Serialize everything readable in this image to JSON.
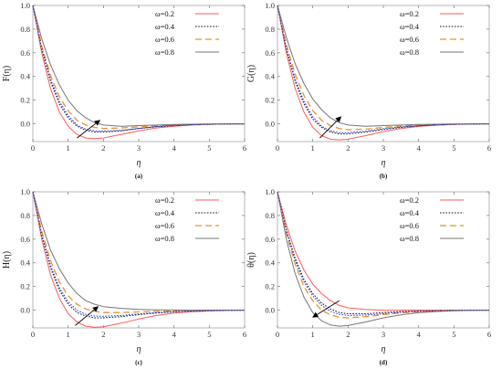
{
  "chart_data": [
    {
      "type": "line",
      "caption": "(a)",
      "ylabel": "F(η)",
      "xlabel": "η",
      "xlim": [
        0,
        6
      ],
      "ylim": [
        -0.15,
        1.0
      ],
      "xticks": [
        "0",
        "1",
        "2",
        "3",
        "4",
        "5",
        "6"
      ],
      "yticks": [
        "0.0",
        "0.2",
        "0.4",
        "0.6",
        "0.8",
        "1.0"
      ],
      "ytick_values": [
        0,
        0.2,
        0.4,
        0.6,
        0.8,
        1.0
      ],
      "legend_position": "top-right",
      "arrow": {
        "from": [
          1.25,
          -0.12
        ],
        "to": [
          1.9,
          0.03
        ]
      },
      "series": [
        {
          "name": "ω=0.2",
          "color": "#ff5a5a",
          "dash": "solid",
          "x": [
            0,
            0.25,
            0.5,
            0.75,
            1,
            1.25,
            1.5,
            1.75,
            2,
            2.5,
            3,
            3.5,
            4,
            4.5,
            5,
            5.5,
            6
          ],
          "y": [
            1.0,
            0.6,
            0.3,
            0.1,
            -0.02,
            -0.09,
            -0.12,
            -0.125,
            -0.12,
            -0.09,
            -0.06,
            -0.035,
            -0.02,
            -0.01,
            -0.005,
            -0.002,
            0.0
          ]
        },
        {
          "name": "ω=0.4",
          "color": "#111111",
          "dash": "dot",
          "x": [
            0,
            0.25,
            0.5,
            0.75,
            1,
            1.25,
            1.5,
            1.75,
            2,
            2.5,
            3,
            3.5,
            4,
            4.5,
            5,
            5.5,
            6
          ],
          "y": [
            1.0,
            0.63,
            0.36,
            0.17,
            0.05,
            -0.02,
            -0.055,
            -0.07,
            -0.07,
            -0.06,
            -0.04,
            -0.025,
            -0.015,
            -0.008,
            -0.004,
            -0.002,
            0.0
          ]
        },
        {
          "name": "ω=0.6",
          "color": "#e8952a",
          "dash": "long",
          "x": [
            0,
            0.25,
            0.5,
            0.75,
            1,
            1.25,
            1.5,
            1.75,
            2,
            2.5,
            3,
            3.5,
            4,
            4.5,
            5,
            5.5,
            6
          ],
          "y": [
            1.0,
            0.66,
            0.41,
            0.23,
            0.11,
            0.03,
            -0.01,
            -0.03,
            -0.04,
            -0.035,
            -0.025,
            -0.015,
            -0.009,
            -0.005,
            -0.003,
            -0.001,
            0.0
          ]
        },
        {
          "name": "ω=0.8",
          "color": "#777777",
          "dash": "solid",
          "x": [
            0,
            0.25,
            0.5,
            0.75,
            1,
            1.25,
            1.5,
            1.75,
            2,
            2.5,
            3,
            3.5,
            4,
            4.5,
            5,
            5.5,
            6
          ],
          "y": [
            1.0,
            0.72,
            0.5,
            0.33,
            0.2,
            0.11,
            0.05,
            0.01,
            -0.01,
            -0.02,
            -0.015,
            -0.01,
            -0.006,
            -0.003,
            -0.002,
            -0.001,
            0.0
          ]
        },
        {
          "name": "",
          "color": "#2233dd",
          "dash": "dot",
          "legend": false,
          "x": [
            0,
            0.25,
            0.5,
            0.75,
            1,
            1.25,
            1.5,
            1.75,
            2,
            2.5,
            3,
            3.5,
            4,
            4.5,
            5,
            5.5,
            6
          ],
          "y": [
            1.0,
            0.64,
            0.38,
            0.19,
            0.07,
            -0.01,
            -0.045,
            -0.06,
            -0.062,
            -0.055,
            -0.038,
            -0.023,
            -0.013,
            -0.007,
            -0.003,
            -0.001,
            0.0
          ]
        }
      ]
    },
    {
      "type": "line",
      "caption": "(b)",
      "ylabel": "G(η)",
      "xlabel": "η",
      "xlim": [
        0,
        6
      ],
      "ylim": [
        -0.15,
        1.0
      ],
      "xticks": [
        "0",
        "1",
        "2",
        "3",
        "4",
        "5",
        "6"
      ],
      "yticks": [
        "0.0",
        "0.2",
        "0.4",
        "0.6",
        "0.8",
        "1.0"
      ],
      "ytick_values": [
        0,
        0.2,
        0.4,
        0.6,
        0.8,
        1.0
      ],
      "legend_position": "top-right",
      "arrow": {
        "from": [
          1.2,
          -0.12
        ],
        "to": [
          1.8,
          0.06
        ]
      },
      "series": [
        {
          "name": "ω=0.2",
          "color": "#ff5a5a",
          "dash": "solid",
          "x": [
            0,
            0.25,
            0.5,
            0.75,
            1,
            1.25,
            1.5,
            1.75,
            2,
            2.5,
            3,
            3.5,
            4,
            4.5,
            5,
            5.5,
            6
          ],
          "y": [
            1.0,
            0.6,
            0.3,
            0.1,
            -0.03,
            -0.1,
            -0.13,
            -0.135,
            -0.13,
            -0.1,
            -0.065,
            -0.04,
            -0.022,
            -0.012,
            -0.006,
            -0.002,
            0.0
          ]
        },
        {
          "name": "ω=0.4",
          "color": "#111111",
          "dash": "dot",
          "x": [
            0,
            0.25,
            0.5,
            0.75,
            1,
            1.25,
            1.5,
            1.75,
            2,
            2.5,
            3,
            3.5,
            4,
            4.5,
            5,
            5.5,
            6
          ],
          "y": [
            1.0,
            0.63,
            0.36,
            0.17,
            0.04,
            -0.03,
            -0.07,
            -0.085,
            -0.085,
            -0.07,
            -0.048,
            -0.03,
            -0.017,
            -0.009,
            -0.004,
            -0.002,
            0.0
          ]
        },
        {
          "name": "ω=0.6",
          "color": "#e8952a",
          "dash": "long",
          "x": [
            0,
            0.25,
            0.5,
            0.75,
            1,
            1.25,
            1.5,
            1.75,
            2,
            2.5,
            3,
            3.5,
            4,
            4.5,
            5,
            5.5,
            6
          ],
          "y": [
            1.0,
            0.67,
            0.42,
            0.24,
            0.11,
            0.03,
            -0.015,
            -0.04,
            -0.05,
            -0.045,
            -0.03,
            -0.018,
            -0.01,
            -0.006,
            -0.003,
            -0.001,
            0.0
          ]
        },
        {
          "name": "ω=0.8",
          "color": "#777777",
          "dash": "solid",
          "x": [
            0,
            0.25,
            0.5,
            0.75,
            1,
            1.25,
            1.5,
            1.75,
            2,
            2.5,
            3,
            3.5,
            4,
            4.5,
            5,
            5.5,
            6
          ],
          "y": [
            1.0,
            0.73,
            0.51,
            0.34,
            0.21,
            0.12,
            0.05,
            0.01,
            -0.01,
            -0.02,
            -0.015,
            -0.01,
            -0.006,
            -0.003,
            -0.002,
            -0.001,
            0.0
          ]
        },
        {
          "name": "",
          "color": "#2233dd",
          "dash": "dot",
          "legend": false,
          "x": [
            0,
            0.25,
            0.5,
            0.75,
            1,
            1.25,
            1.5,
            1.75,
            2,
            2.5,
            3,
            3.5,
            4,
            4.5,
            5,
            5.5,
            6
          ],
          "y": [
            1.0,
            0.64,
            0.38,
            0.19,
            0.06,
            -0.02,
            -0.06,
            -0.075,
            -0.075,
            -0.062,
            -0.042,
            -0.026,
            -0.015,
            -0.008,
            -0.004,
            -0.002,
            0.0
          ]
        }
      ]
    },
    {
      "type": "line",
      "caption": "(c)",
      "ylabel": "H(η)",
      "xlabel": "η",
      "xlim": [
        0,
        6
      ],
      "ylim": [
        -0.15,
        1.0
      ],
      "xticks": [
        "0",
        "1",
        "2",
        "3",
        "4",
        "5",
        "6"
      ],
      "yticks": [
        "0.0",
        "0.2",
        "0.4",
        "0.6",
        "0.8",
        "1.0"
      ],
      "ytick_values": [
        0,
        0.2,
        0.4,
        0.6,
        0.8,
        1.0
      ],
      "legend_position": "top-right",
      "arrow": {
        "from": [
          1.2,
          -0.13
        ],
        "to": [
          1.85,
          0.03
        ]
      },
      "series": [
        {
          "name": "ω=0.2",
          "color": "#ff5a5a",
          "dash": "solid",
          "x": [
            0,
            0.25,
            0.5,
            0.75,
            1,
            1.25,
            1.5,
            1.75,
            2,
            2.5,
            3,
            3.5,
            4,
            4.5,
            5,
            5.5,
            6
          ],
          "y": [
            1.0,
            0.6,
            0.3,
            0.1,
            -0.03,
            -0.1,
            -0.135,
            -0.145,
            -0.14,
            -0.11,
            -0.075,
            -0.045,
            -0.025,
            -0.014,
            -0.007,
            -0.003,
            0.0
          ]
        },
        {
          "name": "ω=0.4",
          "color": "#111111",
          "dash": "dot",
          "x": [
            0,
            0.25,
            0.5,
            0.75,
            1,
            1.25,
            1.5,
            1.75,
            2,
            2.5,
            3,
            3.5,
            4,
            4.5,
            5,
            5.5,
            6
          ],
          "y": [
            1.0,
            0.63,
            0.36,
            0.17,
            0.05,
            -0.02,
            -0.05,
            -0.065,
            -0.065,
            -0.055,
            -0.038,
            -0.024,
            -0.014,
            -0.008,
            -0.004,
            -0.002,
            0.0
          ]
        },
        {
          "name": "ω=0.6",
          "color": "#e8952a",
          "dash": "long",
          "x": [
            0,
            0.25,
            0.5,
            0.75,
            1,
            1.25,
            1.5,
            1.75,
            2,
            2.5,
            3,
            3.5,
            4,
            4.5,
            5,
            5.5,
            6
          ],
          "y": [
            1.0,
            0.67,
            0.42,
            0.24,
            0.12,
            0.05,
            0.01,
            -0.01,
            -0.02,
            -0.02,
            -0.015,
            -0.01,
            -0.006,
            -0.003,
            -0.002,
            -0.001,
            0.0
          ]
        },
        {
          "name": "ω=0.8",
          "color": "#777777",
          "dash": "solid",
          "x": [
            0,
            0.25,
            0.5,
            0.75,
            1,
            1.25,
            1.5,
            1.75,
            2,
            2.5,
            3,
            3.5,
            4,
            4.5,
            5,
            5.5,
            6
          ],
          "y": [
            1.0,
            0.73,
            0.51,
            0.35,
            0.23,
            0.14,
            0.08,
            0.05,
            0.03,
            0.015,
            0.007,
            0.003,
            0.001,
            0.0,
            0.0,
            0.0,
            0.0
          ]
        },
        {
          "name": "",
          "color": "#2233dd",
          "dash": "dot",
          "legend": false,
          "x": [
            0,
            0.25,
            0.5,
            0.75,
            1,
            1.25,
            1.5,
            1.75,
            2,
            2.5,
            3,
            3.5,
            4,
            4.5,
            5,
            5.5,
            6
          ],
          "y": [
            1.0,
            0.64,
            0.38,
            0.19,
            0.07,
            0.0,
            -0.035,
            -0.05,
            -0.052,
            -0.045,
            -0.032,
            -0.02,
            -0.012,
            -0.007,
            -0.003,
            -0.001,
            0.0
          ]
        }
      ]
    },
    {
      "type": "line",
      "caption": "(d)",
      "ylabel": "θ(η)",
      "xlabel": "η",
      "xlim": [
        0,
        6
      ],
      "ylim": [
        -0.15,
        1.0
      ],
      "xticks": [
        "0",
        "1",
        "2",
        "3",
        "4",
        "5",
        "6"
      ],
      "yticks": [
        "0.0",
        "0.2",
        "0.4",
        "0.6",
        "0.8",
        "1.0"
      ],
      "ytick_values": [
        0,
        0.2,
        0.4,
        0.6,
        0.8,
        1.0
      ],
      "legend_position": "top-right",
      "arrow": {
        "from": [
          1.75,
          0.08
        ],
        "to": [
          1.0,
          -0.06
        ]
      },
      "series": [
        {
          "name": "ω=0.2",
          "color": "#ff5a5a",
          "dash": "solid",
          "x": [
            0,
            0.25,
            0.5,
            0.75,
            1,
            1.25,
            1.5,
            1.75,
            2,
            2.5,
            3,
            3.5,
            4,
            4.5,
            5,
            5.5,
            6
          ],
          "y": [
            1.0,
            0.72,
            0.5,
            0.34,
            0.22,
            0.14,
            0.08,
            0.04,
            0.02,
            0.005,
            0.0,
            0.0,
            0.0,
            0.0,
            0.0,
            0.0,
            0.0
          ]
        },
        {
          "name": "ω=0.4",
          "color": "#111111",
          "dash": "dot",
          "x": [
            0,
            0.25,
            0.5,
            0.75,
            1,
            1.25,
            1.5,
            1.75,
            2,
            2.5,
            3,
            3.5,
            4,
            4.5,
            5,
            5.5,
            6
          ],
          "y": [
            1.0,
            0.68,
            0.44,
            0.26,
            0.14,
            0.06,
            0.01,
            -0.02,
            -0.03,
            -0.03,
            -0.02,
            -0.012,
            -0.007,
            -0.004,
            -0.002,
            -0.001,
            0.0
          ]
        },
        {
          "name": "ω=0.6",
          "color": "#e8952a",
          "dash": "long",
          "x": [
            0,
            0.25,
            0.5,
            0.75,
            1,
            1.25,
            1.5,
            1.75,
            2,
            2.5,
            3,
            3.5,
            4,
            4.5,
            5,
            5.5,
            6
          ],
          "y": [
            1.0,
            0.65,
            0.39,
            0.2,
            0.08,
            0.0,
            -0.04,
            -0.06,
            -0.065,
            -0.055,
            -0.038,
            -0.023,
            -0.013,
            -0.007,
            -0.003,
            -0.001,
            0.0
          ]
        },
        {
          "name": "ω=0.8",
          "color": "#777777",
          "dash": "solid",
          "x": [
            0,
            0.25,
            0.5,
            0.75,
            1,
            1.25,
            1.5,
            1.75,
            2,
            2.5,
            3,
            3.5,
            4,
            4.5,
            5,
            5.5,
            6
          ],
          "y": [
            1.0,
            0.6,
            0.31,
            0.11,
            -0.02,
            -0.09,
            -0.125,
            -0.135,
            -0.13,
            -0.1,
            -0.065,
            -0.04,
            -0.022,
            -0.012,
            -0.006,
            -0.002,
            0.0
          ]
        },
        {
          "name": "",
          "color": "#2233dd",
          "dash": "dot",
          "legend": false,
          "x": [
            0,
            0.25,
            0.5,
            0.75,
            1,
            1.25,
            1.5,
            1.75,
            2,
            2.5,
            3,
            3.5,
            4,
            4.5,
            5,
            5.5,
            6
          ],
          "y": [
            1.0,
            0.67,
            0.42,
            0.24,
            0.12,
            0.04,
            -0.01,
            -0.035,
            -0.045,
            -0.042,
            -0.03,
            -0.018,
            -0.01,
            -0.006,
            -0.003,
            -0.001,
            0.0
          ]
        }
      ]
    }
  ]
}
